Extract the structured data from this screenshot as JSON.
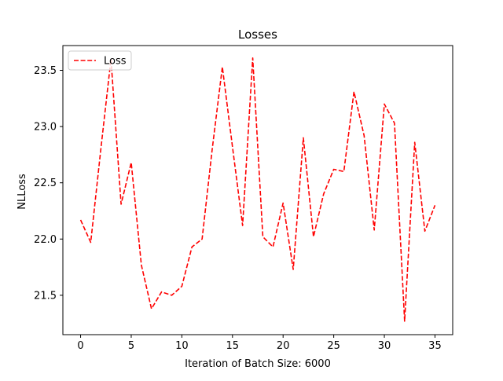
{
  "chart_data": {
    "type": "line",
    "title": "Losses",
    "xlabel": "Iteration of Batch Size: 6000",
    "ylabel": "NLLoss",
    "xlim": [
      -1.75,
      36.75
    ],
    "ylim": [
      21.15,
      23.72
    ],
    "xticks": [
      0,
      5,
      10,
      15,
      20,
      25,
      30,
      35
    ],
    "yticks": [
      21.5,
      22.0,
      22.5,
      23.0,
      23.5
    ],
    "ytick_labels": [
      "21.5",
      "22.0",
      "22.5",
      "23.0",
      "23.5"
    ],
    "grid": false,
    "legend_position": "top-left",
    "series": [
      {
        "name": "Loss",
        "color": "#ff0000",
        "line_style": "dashed",
        "x": [
          0,
          1,
          2,
          3,
          4,
          5,
          6,
          7,
          8,
          9,
          10,
          11,
          12,
          13,
          14,
          15,
          16,
          17,
          18,
          19,
          20,
          21,
          22,
          23,
          24,
          25,
          26,
          27,
          28,
          29,
          30,
          31,
          32,
          33,
          34,
          35
        ],
        "values": [
          22.17,
          21.97,
          22.8,
          23.6,
          22.31,
          22.68,
          21.77,
          21.38,
          21.53,
          21.5,
          21.58,
          21.93,
          22.0,
          22.8,
          23.53,
          22.82,
          22.12,
          23.61,
          22.02,
          21.93,
          22.32,
          21.73,
          22.9,
          22.02,
          22.4,
          22.62,
          22.6,
          23.31,
          22.92,
          22.08,
          23.2,
          23.03,
          21.27,
          22.86,
          22.07,
          22.3
        ]
      }
    ]
  }
}
